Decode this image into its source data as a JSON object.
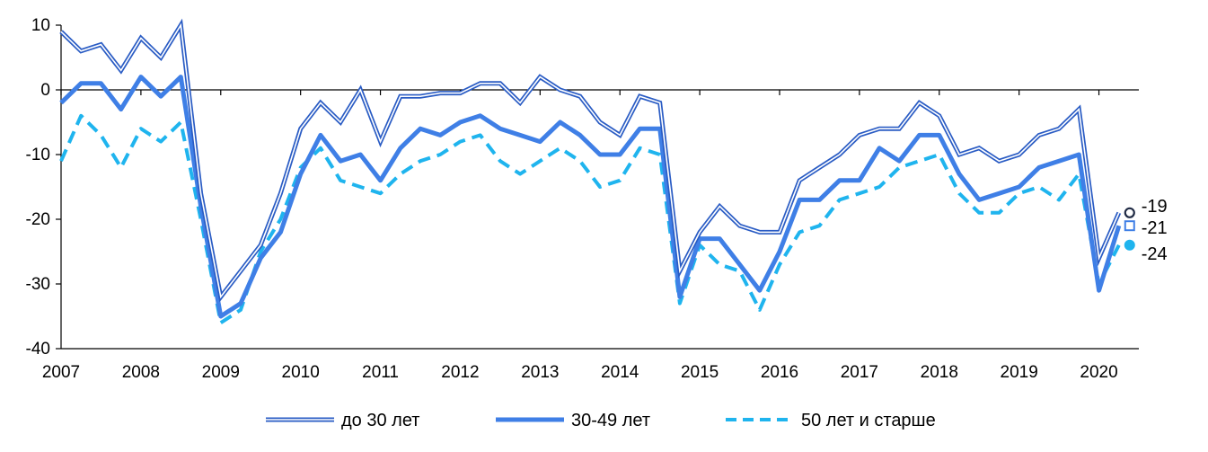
{
  "chart_data": {
    "type": "line",
    "x_ticks": [
      "2007",
      "2008",
      "2009",
      "2010",
      "2011",
      "2012",
      "2013",
      "2014",
      "2015",
      "2016",
      "2017",
      "2018",
      "2019",
      "2020"
    ],
    "ylim": [
      -40,
      10
    ],
    "yticks": [
      10,
      0,
      -10,
      -20,
      -30,
      -40
    ],
    "grid": false,
    "legend_position": "bottom",
    "series": [
      {
        "name": "до 30 лет",
        "color": "#2a5cc4",
        "style": "double",
        "values": [
          9,
          6,
          7,
          3,
          8,
          5,
          10,
          -16,
          -32,
          -28,
          -24,
          -16,
          -6,
          -2,
          -5,
          0,
          -8,
          -1,
          -1,
          -0.5,
          -0.5,
          1,
          1,
          -2,
          2,
          0,
          -1,
          -5,
          -7,
          -1,
          -2,
          -28,
          -22,
          -18,
          -21,
          -22,
          -22,
          -14,
          -12,
          -10,
          -7,
          -6,
          -6,
          -2,
          -4,
          -10,
          -9,
          -11,
          -10,
          -7,
          -6,
          -3,
          -26,
          -19
        ],
        "end_label": "-19"
      },
      {
        "name": "30-49 лет",
        "color": "#3f7fe6",
        "style": "thick",
        "values": [
          -2,
          1,
          1,
          -3,
          2,
          -1,
          2,
          -18,
          -35,
          -33,
          -26,
          -22,
          -13,
          -7,
          -11,
          -10,
          -14,
          -9,
          -6,
          -7,
          -5,
          -4,
          -6,
          -7,
          -8,
          -5,
          -7,
          -10,
          -10,
          -6,
          -6,
          -32,
          -23,
          -23,
          -27,
          -31,
          -25,
          -17,
          -17,
          -14,
          -14,
          -9,
          -11,
          -7,
          -7,
          -13,
          -17,
          -16,
          -15,
          -12,
          -11,
          -10,
          -31,
          -21
        ],
        "end_label": "-21"
      },
      {
        "name": "50 лет и старше",
        "color": "#1fb4ee",
        "style": "dashed",
        "values": [
          -11,
          -4,
          -7,
          -12,
          -6,
          -8,
          -5,
          -20,
          -36,
          -34,
          -25,
          -20,
          -12,
          -9,
          -14,
          -15,
          -16,
          -13,
          -11,
          -10,
          -8,
          -7,
          -11,
          -13,
          -11,
          -9,
          -11,
          -15,
          -14,
          -9,
          -10,
          -33,
          -24,
          -27,
          -28,
          -34,
          -27,
          -22,
          -21,
          -17,
          -16,
          -15,
          -12,
          -11,
          -10,
          -16,
          -19,
          -19,
          -16,
          -15,
          -17,
          -13,
          -30,
          -24
        ],
        "end_label": "-24"
      }
    ]
  }
}
